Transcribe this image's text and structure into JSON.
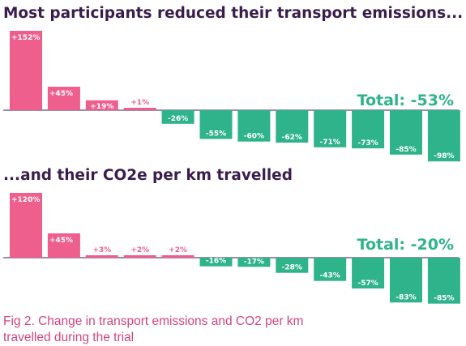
{
  "colors": {
    "positive": "#ee5f8e",
    "negative": "#2fb38a",
    "title": "#3a1d4c",
    "axis": "#3a1d4c",
    "caption": "#d1457f"
  },
  "caption": "Fig 2. Change in transport emissions and CO2 per km travelled during the trial",
  "chart_data": [
    {
      "type": "bar",
      "title": "Most participants reduced their transport emissions...",
      "total_label": "Total: -53%",
      "values": [
        152,
        45,
        19,
        1,
        -26,
        -55,
        -60,
        -62,
        -71,
        -73,
        -85,
        -98
      ],
      "labels": [
        "+152%",
        "+45%",
        "+19%",
        "+1%",
        "-26%",
        "-55%",
        "-60%",
        "-62%",
        "-71%",
        "-73%",
        "-85%",
        "-98%"
      ]
    },
    {
      "type": "bar",
      "title": "...and their CO2e per km travelled",
      "total_label": "Total: -20%",
      "values": [
        120,
        45,
        3,
        2,
        2,
        -16,
        -17,
        -28,
        -43,
        -57,
        -83,
        -85
      ],
      "labels": [
        "+120%",
        "+45%",
        "+3%",
        "+2%",
        "+2%",
        "-16%",
        "-17%",
        "-28%",
        "-43%",
        "-57%",
        "-83%",
        "-85%"
      ]
    }
  ]
}
